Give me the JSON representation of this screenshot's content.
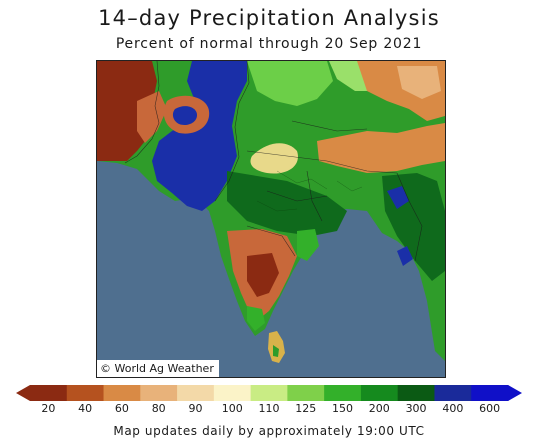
{
  "header": {
    "title": "14–day Precipitation Analysis",
    "subtitle": "Percent of normal through 20 Sep 2021"
  },
  "map": {
    "credit": "© World Ag Weather",
    "ocean_color": "#4f6f8f"
  },
  "legend": {
    "ticks": [
      "20",
      "40",
      "60",
      "80",
      "90",
      "100",
      "110",
      "125",
      "150",
      "200",
      "300",
      "400",
      "600"
    ],
    "colors": [
      "#8b2a12",
      "#b5521f",
      "#d98a45",
      "#e8b27a",
      "#f3d9a8",
      "#fbf3c8",
      "#c9ec84",
      "#7fd04a",
      "#33b02a",
      "#158a1e",
      "#0b5a14",
      "#1a2a9a",
      "#1010c8"
    ]
  },
  "footer": {
    "note": "Map updates daily by approximately 19:00 UTC"
  }
}
